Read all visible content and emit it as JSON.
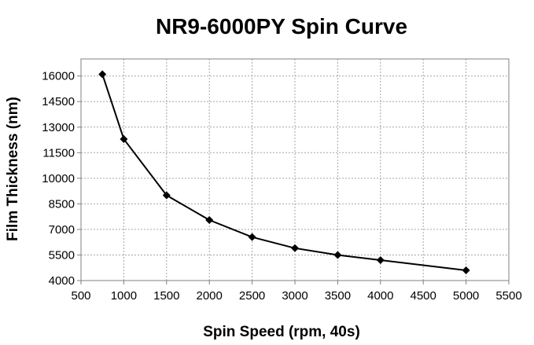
{
  "chart_data": {
    "type": "line",
    "title": "NR9-6000PY Spin Curve",
    "xlabel": "Spin Speed (rpm, 40s)",
    "ylabel": "Film Thickness (nm)",
    "xlim": [
      500,
      5500
    ],
    "ylim": [
      4000,
      17000
    ],
    "x_ticks": [
      500,
      1000,
      1500,
      2000,
      2500,
      3000,
      3500,
      4000,
      4500,
      5000,
      5500
    ],
    "y_ticks": [
      4000,
      5500,
      7000,
      8500,
      10000,
      11500,
      13000,
      14500,
      16000
    ],
    "x_tick_labels": [
      "500",
      "1000",
      "1500",
      "2000",
      "2500",
      "3000",
      "3500",
      "4000",
      "4500",
      "5000",
      "5500"
    ],
    "y_tick_labels": [
      "4000",
      "5500",
      "7000",
      "8500",
      "10000",
      "11500",
      "13000",
      "14500",
      "16000"
    ],
    "grid": true,
    "series": [
      {
        "name": "NR9-6000PY",
        "marker": "diamond",
        "color": "#000000",
        "x": [
          750,
          1000,
          1500,
          2000,
          2500,
          3000,
          3500,
          4000,
          5000
        ],
        "y": [
          16100,
          12300,
          9000,
          7550,
          6550,
          5900,
          5500,
          5200,
          4600
        ]
      }
    ]
  }
}
